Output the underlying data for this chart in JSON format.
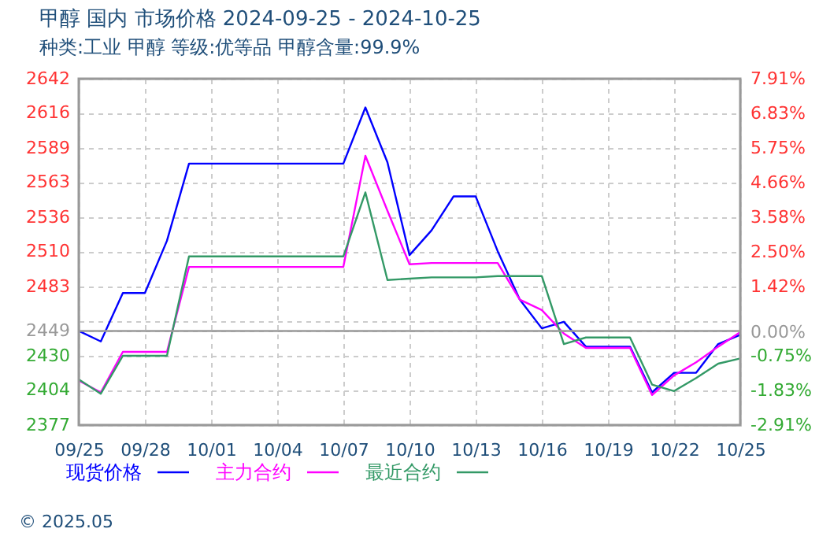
{
  "chart_data": {
    "type": "line",
    "title": "甲醇 国内 市场价格 2024-09-25 - 2024-10-25",
    "subtitle": "种类:工业 甲醇 等级:优等品 甲醇含量:99.9%",
    "x": [
      "2024-09-25",
      "2024-09-26",
      "2024-09-27",
      "2024-09-28",
      "2024-09-29",
      "2024-09-30",
      "2024-10-01",
      "2024-10-02",
      "2024-10-03",
      "2024-10-04",
      "2024-10-05",
      "2024-10-06",
      "2024-10-07",
      "2024-10-08",
      "2024-10-09",
      "2024-10-10",
      "2024-10-11",
      "2024-10-12",
      "2024-10-13",
      "2024-10-14",
      "2024-10-15",
      "2024-10-16",
      "2024-10-17",
      "2024-10-18",
      "2024-10-19",
      "2024-10-20",
      "2024-10-21",
      "2024-10-22",
      "2024-10-23",
      "2024-10-24",
      "2024-10-25"
    ],
    "series": [
      {
        "name": "现货价格",
        "color": "#0000ff",
        "values": [
          2449,
          2441,
          2478,
          2478,
          2518,
          2577,
          2577,
          2577,
          2577,
          2577,
          2577,
          2577,
          2577,
          2620,
          2578,
          2507,
          2526,
          2552,
          2552,
          2510,
          2473,
          2451,
          2456,
          2437,
          2437,
          2437,
          2402,
          2417,
          2417,
          2439,
          2446
        ]
      },
      {
        "name": "主力合约",
        "color": "#ff00ff",
        "values": [
          2411,
          2402,
          2433,
          2433,
          2433,
          2498,
          2498,
          2498,
          2498,
          2498,
          2498,
          2498,
          2498,
          2583,
          2541,
          2500,
          2501,
          2501,
          2501,
          2501,
          2473,
          2465,
          2447,
          2436,
          2436,
          2436,
          2400,
          2415,
          2425,
          2437,
          2448
        ]
      },
      {
        "name": "最近合约",
        "color": "#339966",
        "values": [
          2412,
          2401,
          2430,
          2430,
          2430,
          2506,
          2506,
          2506,
          2506,
          2506,
          2506,
          2506,
          2506,
          2555,
          2488,
          2489,
          2490,
          2490,
          2490,
          2491,
          2491,
          2491,
          2439,
          2444,
          2444,
          2444,
          2408,
          2403,
          2413,
          2424,
          2428
        ]
      }
    ],
    "xlim": [
      "2024-09-25",
      "2024-10-25"
    ],
    "xticks": [
      {
        "value": "2024-09-25",
        "label": "09/25"
      },
      {
        "value": "2024-09-28",
        "label": "09/28"
      },
      {
        "value": "2024-10-01",
        "label": "10/01"
      },
      {
        "value": "2024-10-04",
        "label": "10/04"
      },
      {
        "value": "2024-10-07",
        "label": "10/07"
      },
      {
        "value": "2024-10-10",
        "label": "10/10"
      },
      {
        "value": "2024-10-13",
        "label": "10/13"
      },
      {
        "value": "2024-10-16",
        "label": "10/16"
      },
      {
        "value": "2024-10-19",
        "label": "10/19"
      },
      {
        "value": "2024-10-22",
        "label": "10/22"
      },
      {
        "value": "2024-10-25",
        "label": "10/25"
      }
    ],
    "ylim": [
      2377,
      2642
    ],
    "yticks": [
      2377,
      2404,
      2430,
      2449,
      {
        "value": 2457,
        "label": null
      },
      2483,
      2510,
      2536,
      2563,
      2589,
      2616,
      2642
    ],
    "y2lim": [
      -2.91,
      7.91
    ],
    "y2ticks": [
      {
        "value": -2.91,
        "label": "-2.91%"
      },
      {
        "value": -1.83,
        "label": "-1.83%"
      },
      {
        "value": -0.75,
        "label": "-0.75%"
      },
      {
        "value": 0,
        "label": "0.00%"
      },
      {
        "value": 1.42,
        "label": "1.42%"
      },
      {
        "value": 2.5,
        "label": "2.50%"
      },
      {
        "value": 3.58,
        "label": "3.58%"
      },
      {
        "value": 4.66,
        "label": "4.66%"
      },
      {
        "value": 5.75,
        "label": "5.75%"
      },
      {
        "value": 6.83,
        "label": "6.83%"
      },
      {
        "value": 7.91,
        "label": "7.91%"
      }
    ],
    "ref_lines": [
      {
        "axis": "y",
        "value": 2449,
        "color": "#999999",
        "line_style": "solid"
      }
    ],
    "grid": true,
    "legend": "bottom",
    "marker": "none",
    "line_style": "solid",
    "annotations": [
      "© 2025.05"
    ]
  }
}
